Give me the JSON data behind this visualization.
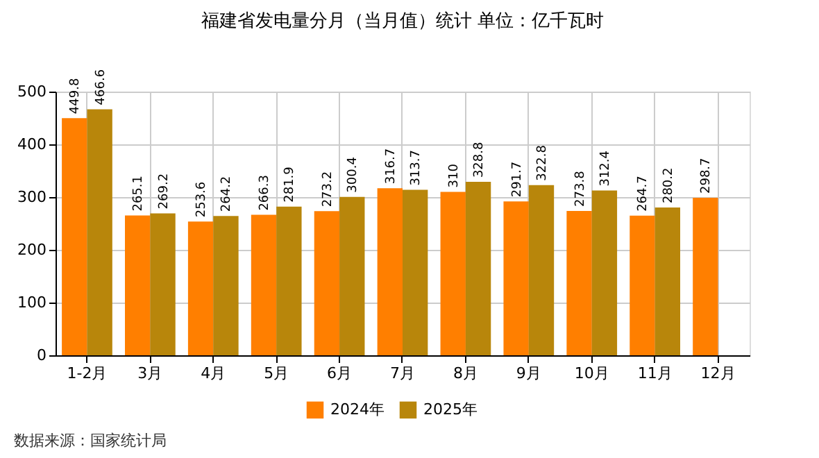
{
  "chart_data": {
    "type": "bar",
    "title": "福建省发电量分月（当月值）统计 单位：亿千瓦时",
    "categories": [
      "1-2月",
      "3月",
      "4月",
      "5月",
      "6月",
      "7月",
      "8月",
      "9月",
      "10月",
      "11月",
      "12月"
    ],
    "series": [
      {
        "name": "2024年",
        "color": "#ff7f00",
        "values": [
          449.8,
          265.1,
          253.6,
          266.3,
          273.2,
          316.7,
          310,
          291.7,
          273.8,
          264.7,
          298.7
        ]
      },
      {
        "name": "2025年",
        "color": "#b8860b",
        "values": [
          466.6,
          269.2,
          264.2,
          281.9,
          300.4,
          313.7,
          328.8,
          322.8,
          312.4,
          280.2,
          null
        ]
      }
    ],
    "ylim": [
      0,
      500
    ],
    "yticks": [
      0,
      100,
      200,
      300,
      400,
      500
    ],
    "grid": true,
    "legend": "bottom",
    "data_labels": true,
    "annotations": [
      "数据来源：国家统计局"
    ]
  }
}
